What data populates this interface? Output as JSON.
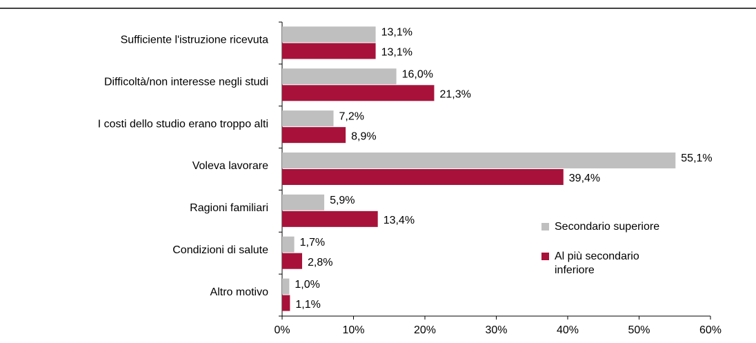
{
  "chart_data": {
    "type": "bar",
    "orientation": "horizontal",
    "categories": [
      "Sufficiente l'istruzione ricevuta",
      "Difficoltà/non interesse negli studi",
      "I costi dello studio erano troppo alti",
      "Voleva lavorare",
      "Ragioni familiari",
      "Condizioni di salute",
      "Altro motivo"
    ],
    "series": [
      {
        "name": "Secondario superiore",
        "color": "#bfbfbf",
        "values": [
          13.1,
          16.0,
          7.2,
          55.1,
          5.9,
          1.7,
          1.0
        ],
        "value_labels": [
          "13,1%",
          "16,0%",
          "7,2%",
          "55,1%",
          "5,9%",
          "1,7%",
          "1,0%"
        ]
      },
      {
        "name": "Al più secondario inferiore",
        "color": "#a8123a",
        "values": [
          13.1,
          21.3,
          8.9,
          39.4,
          13.4,
          2.8,
          1.1
        ],
        "value_labels": [
          "13,1%",
          "21,3%",
          "8,9%",
          "39,4%",
          "13,4%",
          "2,8%",
          "1,1%"
        ]
      }
    ],
    "xlim": [
      0,
      60
    ],
    "xticks": [
      {
        "value": 0,
        "label": "0%"
      },
      {
        "value": 10,
        "label": "10%"
      },
      {
        "value": 20,
        "label": "20%"
      },
      {
        "value": 30,
        "label": "30%"
      },
      {
        "value": 40,
        "label": "40%"
      },
      {
        "value": 50,
        "label": "50%"
      },
      {
        "value": 60,
        "label": "60%"
      }
    ],
    "legend": "right"
  }
}
